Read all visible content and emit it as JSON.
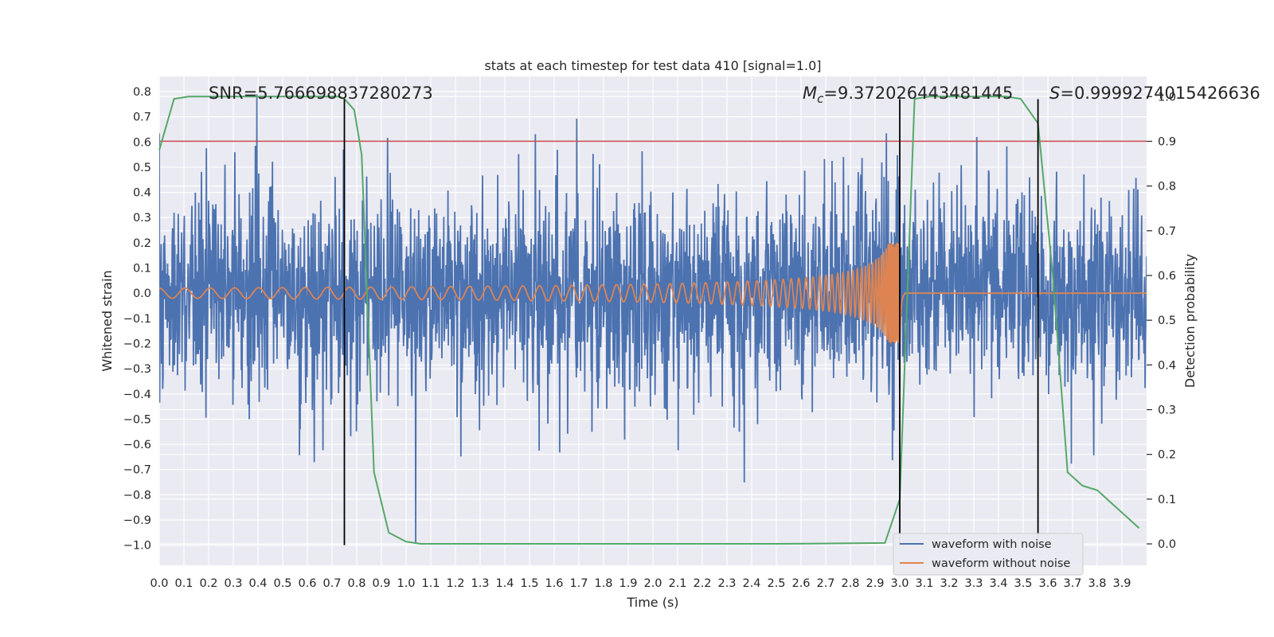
{
  "chart_data": {
    "type": "line",
    "title": "stats at each timestep for test data 410 [signal=1.0]",
    "xlabel": "Time (s)",
    "ylabel": "Whitened strain",
    "y2label": "Detection probability",
    "xlim": [
      0.0,
      4.0
    ],
    "ylim": [
      -1.08,
      0.86
    ],
    "y2lim": [
      -0.048,
      1.045
    ],
    "x_ticks": [
      0.0,
      0.1,
      0.2,
      0.3,
      0.4,
      0.5,
      0.6,
      0.7,
      0.8,
      0.9,
      1.0,
      1.1,
      1.2,
      1.3,
      1.4,
      1.5,
      1.6,
      1.7,
      1.8,
      1.9,
      2.0,
      2.1,
      2.2,
      2.3,
      2.4,
      2.5,
      2.6,
      2.7,
      2.8,
      2.9,
      3.0,
      3.1,
      3.2,
      3.3,
      3.4,
      3.5,
      3.6,
      3.7,
      3.8,
      3.9
    ],
    "x_tick_labels": [
      "0.0",
      "0.1",
      "0.2",
      "0.3",
      "0.4",
      "0.5",
      "0.6",
      "0.7",
      "0.8",
      "0.9",
      "1.0",
      "1.1",
      "1.2",
      "1.3",
      "1.4",
      "1.5",
      "1.6",
      "1.7",
      "1.8",
      "1.9",
      "2.0",
      "2.1",
      "2.2",
      "2.3",
      "2.4",
      "2.5",
      "2.6",
      "2.7",
      "2.8",
      "2.9",
      "3.0",
      "3.1",
      "3.2",
      "3.3",
      "3.4",
      "3.5",
      "3.6",
      "3.7",
      "3.8",
      "3.9"
    ],
    "y_ticks": [
      0.8,
      0.7,
      0.6,
      0.5,
      0.4,
      0.3,
      0.2,
      0.1,
      0.0,
      -0.1,
      -0.2,
      -0.3,
      -0.4,
      -0.5,
      -0.6,
      -0.7,
      -0.8,
      -0.9,
      -1.0
    ],
    "y_tick_labels": [
      "0.8",
      "0.7",
      "0.6",
      "0.5",
      "0.4",
      "0.3",
      "0.2",
      "0.1",
      "0.0",
      "−0.1",
      "−0.2",
      "−0.3",
      "−0.4",
      "−0.5",
      "−0.6",
      "−0.7",
      "−0.8",
      "−0.9",
      "−1.0"
    ],
    "y2_ticks": [
      1.0,
      0.9,
      0.8,
      0.7,
      0.6,
      0.5,
      0.4,
      0.3,
      0.2,
      0.1,
      0.0
    ],
    "y2_tick_labels": [
      "1.0",
      "0.9",
      "0.8",
      "0.7",
      "0.6",
      "0.5",
      "0.4",
      "0.3",
      "0.2",
      "0.1",
      "0.0"
    ],
    "grid": true,
    "series": [
      {
        "name": "waveform with noise",
        "color": "#4c72b0",
        "kind": "noisy-strain",
        "approx_std": 0.2,
        "approx_range": [
          -1.0,
          0.77
        ]
      },
      {
        "name": "waveform without noise",
        "color": "#dd8452",
        "kind": "chirp",
        "merger_time": 3.0,
        "peak_amplitude": 0.2,
        "initial_amplitude": 0.02
      },
      {
        "color": "#55a868",
        "axis": "right",
        "x": [
          0.0,
          0.06,
          0.12,
          0.18,
          0.25,
          0.31,
          0.37,
          0.43,
          0.49,
          0.55,
          0.61,
          0.67,
          0.73,
          0.75,
          0.79,
          0.82,
          0.87,
          0.93,
          1.0,
          1.06,
          1.12,
          1.5,
          2.0,
          2.5,
          2.94,
          3.0,
          3.06,
          3.12,
          3.18,
          3.25,
          3.31,
          3.37,
          3.43,
          3.49,
          3.56,
          3.62,
          3.68,
          3.74,
          3.8,
          3.86,
          3.97
        ],
        "y": [
          0.88,
          0.995,
          1.0,
          1.0,
          1.0,
          1.0,
          1.0,
          1.0,
          1.0,
          1.0,
          1.0,
          1.0,
          1.0,
          0.995,
          0.97,
          0.87,
          0.16,
          0.025,
          0.005,
          0.0,
          0.0,
          0.0,
          0.0,
          0.0,
          0.002,
          0.1,
          0.995,
          1.0,
          1.0,
          1.0,
          1.0,
          1.0,
          1.0,
          0.995,
          0.94,
          0.6,
          0.16,
          0.13,
          0.12,
          0.09,
          0.035
        ]
      }
    ],
    "threshold": {
      "axis": "right",
      "value": 0.9,
      "color": "#c44e52"
    },
    "vlines": [
      {
        "x": 0.75,
        "y_from": -1.0,
        "y_to": 0.77
      },
      {
        "x": 3.0,
        "y_from": -1.0,
        "y_to": 0.77
      },
      {
        "x": 3.56,
        "y_from": -1.0,
        "y_to": 0.77
      }
    ],
    "annotations": {
      "snr": "SNR=5.766698837280273",
      "mc_sym": "M",
      "mc_sub": "c",
      "mc_val": "=9.372026443481445",
      "s_sym": "S",
      "s_val": "=0.9999274015426636"
    },
    "legend": {
      "placement": "lower-right",
      "entries": [
        "waveform with noise",
        "waveform without noise"
      ]
    }
  }
}
